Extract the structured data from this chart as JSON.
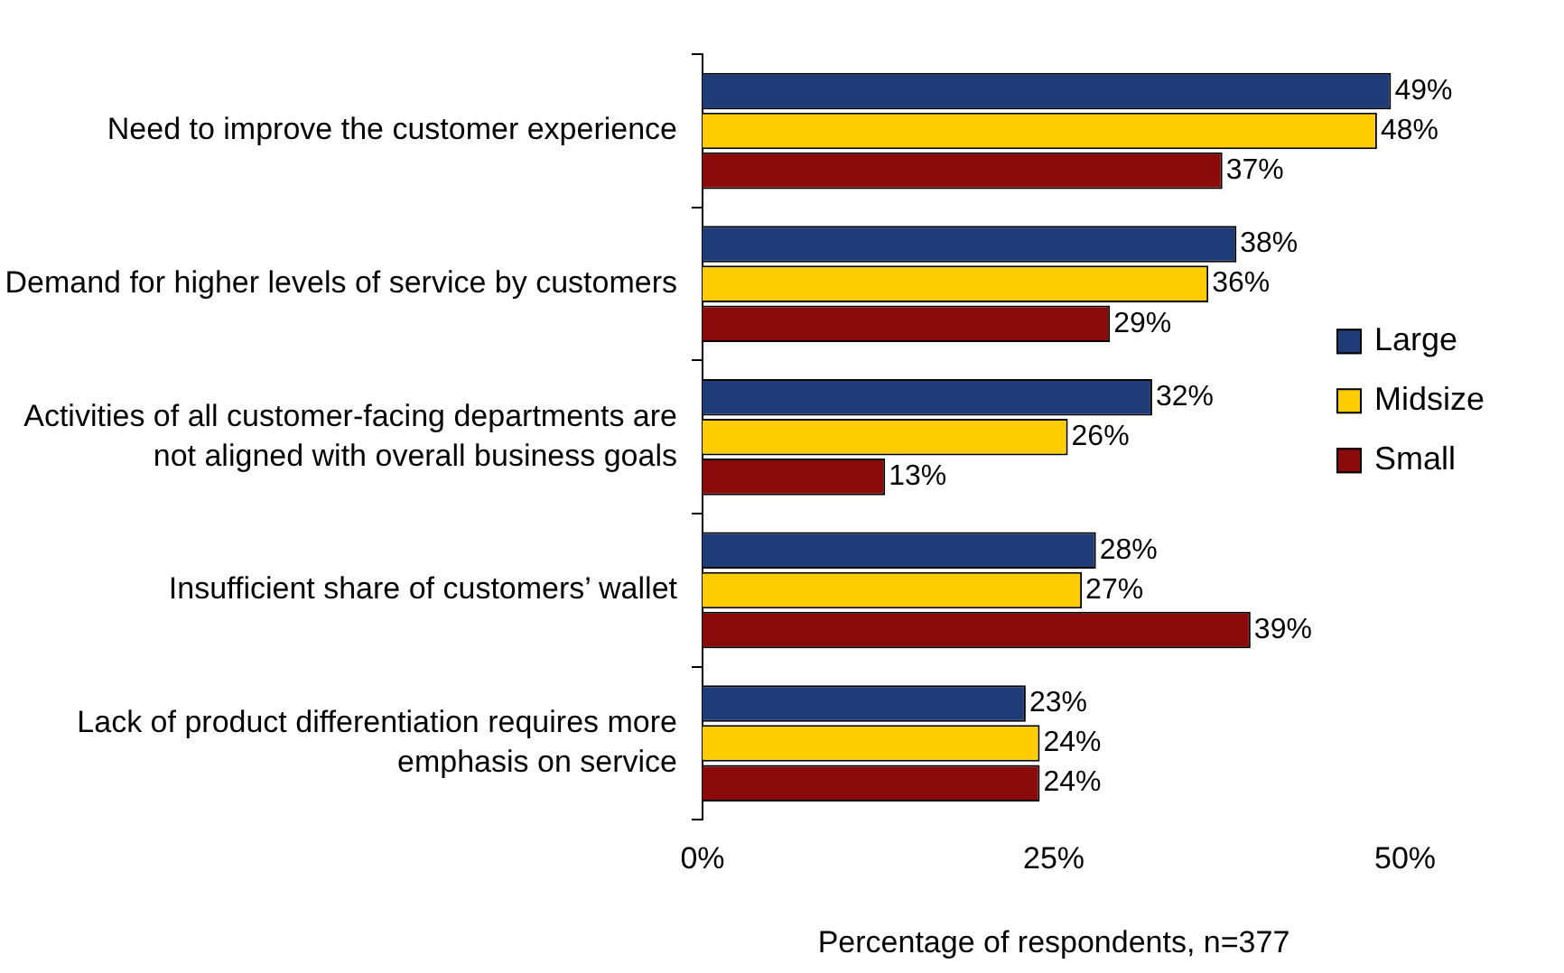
{
  "chart_data": {
    "type": "bar",
    "orientation": "horizontal",
    "xlabel": "Percentage of respondents, n=377",
    "categories": [
      "Need to improve the customer experience",
      "Demand for higher levels of service by customers",
      "Activities of all customer-facing departments are not aligned with overall business goals",
      "Insufficient share of customers’ wallet",
      "Lack of product differentiation requires more emphasis on service"
    ],
    "series": [
      {
        "name": "Large",
        "color": "#1f3c79",
        "values": [
          49,
          38,
          32,
          28,
          23
        ],
        "value_labels": [
          "49%",
          "38%",
          "32%",
          "28%",
          "23%"
        ]
      },
      {
        "name": "Midsize",
        "color": "#ffcc00",
        "values": [
          48,
          36,
          26,
          27,
          24
        ],
        "value_labels": [
          "48%",
          "36%",
          "26%",
          "27%",
          "24%"
        ]
      },
      {
        "name": "Small",
        "color": "#8b0a0a",
        "values": [
          37,
          29,
          13,
          39,
          24
        ],
        "value_labels": [
          "37%",
          "29%",
          "13%",
          "39%",
          "24%"
        ]
      }
    ],
    "xlim": [
      0,
      50
    ],
    "xticks": [
      {
        "value": 0,
        "label": "0%"
      },
      {
        "value": 25,
        "label": "25%"
      },
      {
        "value": 50,
        "label": "50%"
      }
    ],
    "legend": "right"
  }
}
